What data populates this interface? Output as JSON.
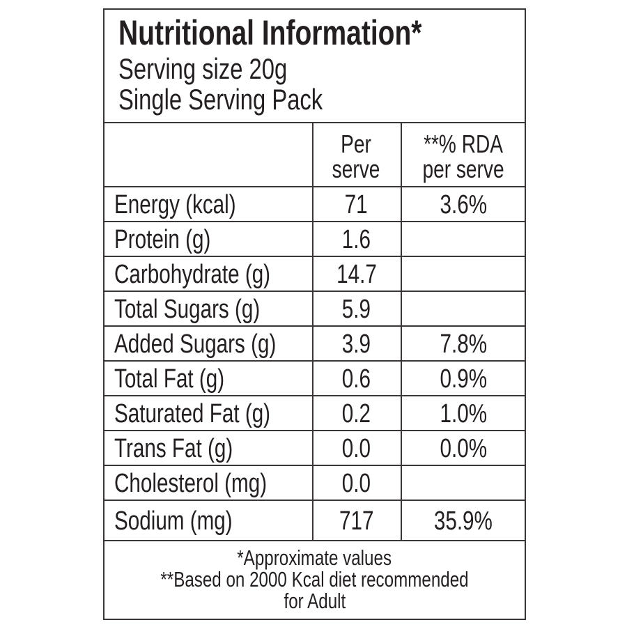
{
  "header": {
    "title": "Nutritional Information*",
    "lines": [
      "Serving size 20g",
      "Single Serving Pack"
    ]
  },
  "table": {
    "headers": [
      [
        "Per",
        "serve"
      ],
      [
        "**% RDA",
        "per serve"
      ]
    ],
    "rows": [
      {
        "nutrient": "Energy (kcal)",
        "per_serve": "71",
        "rda": "3.6%"
      },
      {
        "nutrient": "Protein (g)",
        "per_serve": "1.6"
      },
      {
        "nutrient": "Carbohydrate (g)",
        "per_serve": "14.7"
      },
      {
        "nutrient": "Total Sugars (g)",
        "per_serve": "5.9"
      },
      {
        "nutrient": "Added Sugars (g)",
        "per_serve": "3.9",
        "rda": "7.8%"
      },
      {
        "nutrient": "Total Fat (g)",
        "per_serve": "0.6",
        "rda": "0.9%"
      },
      {
        "nutrient": "Saturated Fat (g)",
        "per_serve": "0.2",
        "rda": "1.0%"
      },
      {
        "nutrient": "Trans Fat (g)",
        "per_serve": "0.0",
        "rda": "0.0%"
      },
      {
        "nutrient": "Cholesterol (mg)",
        "per_serve": "0.0"
      },
      {
        "nutrient": "Sodium (mg)",
        "per_serve": "717",
        "rda": "35.9%"
      }
    ]
  },
  "footer": {
    "lines": [
      "*Approximate values",
      "**Based on 2000 Kcal diet recommended",
      "for Adult"
    ]
  }
}
